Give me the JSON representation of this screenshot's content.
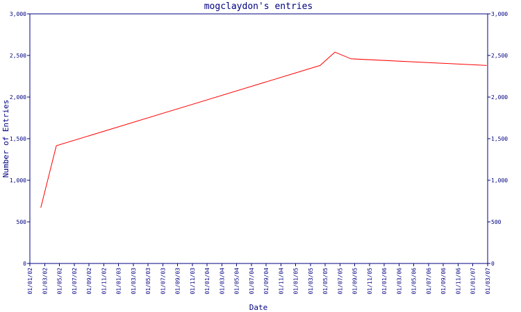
{
  "chart_data": {
    "type": "line",
    "title": "mogclaydon's entries",
    "xlabel": "Date",
    "ylabel": "Number of Entries",
    "ylim": [
      0,
      3000
    ],
    "yticks": [
      0,
      500,
      1000,
      1500,
      2000,
      2500,
      3000
    ],
    "ytick_labels": [
      "0",
      "500",
      "1,000",
      "1,500",
      "2,000",
      "2,500",
      "3,000"
    ],
    "xlim": [
      "2002-01-01",
      "2007-03-01"
    ],
    "xtick_labels": [
      "01/01/02",
      "01/03/02",
      "01/05/02",
      "01/07/02",
      "01/09/02",
      "01/11/02",
      "01/01/03",
      "01/03/03",
      "01/05/03",
      "01/07/03",
      "01/09/03",
      "01/11/03",
      "01/01/04",
      "01/03/04",
      "01/05/04",
      "01/07/04",
      "01/09/04",
      "01/11/04",
      "01/01/05",
      "01/03/05",
      "01/05/05",
      "01/07/05",
      "01/09/05",
      "01/11/05",
      "01/01/06",
      "01/03/06",
      "01/05/06",
      "01/07/06",
      "01/09/06",
      "01/11/06",
      "01/01/07",
      "01/03/07"
    ],
    "grid": false,
    "series": [
      {
        "color": "#ff0000",
        "x": [
          "2002-02-15",
          "2002-04-20",
          "2005-04-10",
          "2005-06-10",
          "2005-08-15",
          "2007-02-25"
        ],
        "y": [
          670,
          1415,
          2380,
          2540,
          2460,
          2380
        ]
      }
    ]
  },
  "colors": {
    "axis": "#000080",
    "line": "#ff0000"
  }
}
